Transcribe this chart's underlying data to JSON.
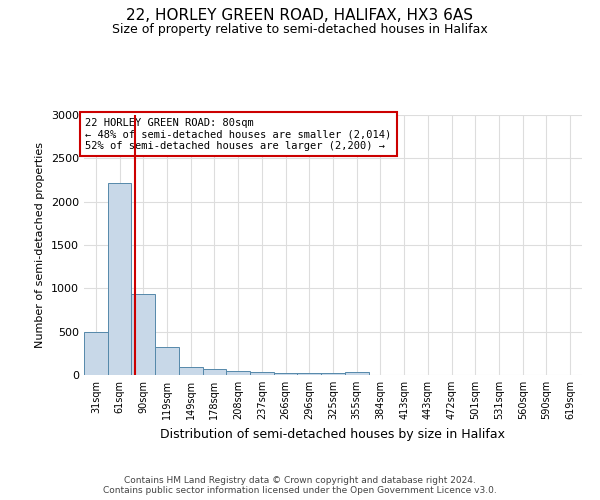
{
  "title1": "22, HORLEY GREEN ROAD, HALIFAX, HX3 6AS",
  "title2": "Size of property relative to semi-detached houses in Halifax",
  "xlabel": "Distribution of semi-detached houses by size in Halifax",
  "ylabel": "Number of semi-detached properties",
  "footnote": "Contains HM Land Registry data © Crown copyright and database right 2024.\nContains public sector information licensed under the Open Government Licence v3.0.",
  "bar_labels": [
    "31sqm",
    "61sqm",
    "90sqm",
    "119sqm",
    "149sqm",
    "178sqm",
    "208sqm",
    "237sqm",
    "266sqm",
    "296sqm",
    "325sqm",
    "355sqm",
    "384sqm",
    "413sqm",
    "443sqm",
    "472sqm",
    "501sqm",
    "531sqm",
    "560sqm",
    "590sqm",
    "619sqm"
  ],
  "bar_values": [
    500,
    2210,
    940,
    325,
    90,
    75,
    50,
    38,
    28,
    22,
    18,
    32,
    0,
    0,
    0,
    0,
    0,
    0,
    0,
    0,
    0
  ],
  "bar_color": "#c8d8e8",
  "bar_edge_color": "#5588aa",
  "property_line_x": 1.65,
  "property_line_color": "#cc0000",
  "annotation_text": "22 HORLEY GREEN ROAD: 80sqm\n← 48% of semi-detached houses are smaller (2,014)\n52% of semi-detached houses are larger (2,200) →",
  "annotation_box_color": "#ffffff",
  "annotation_box_edge": "#cc0000",
  "ylim": [
    0,
    3000
  ],
  "grid_color": "#dddddd",
  "background_color": "#ffffff"
}
